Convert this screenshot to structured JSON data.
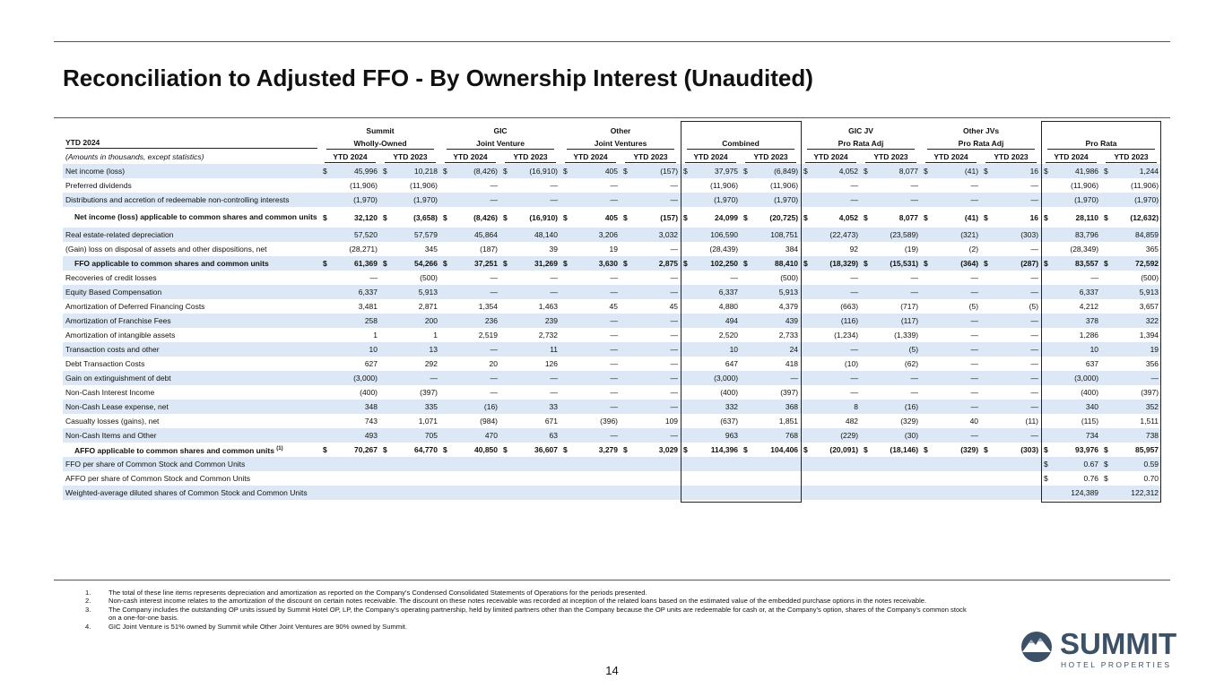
{
  "header": {
    "title": "Reconciliation to Adjusted FFO - By Ownership Interest (Unaudited)"
  },
  "table": {
    "row_header_label": "YTD 2024",
    "units_note": "(Amounts in thousands, except statistics)",
    "groups": [
      {
        "top": "Summit",
        "sub": "Wholly-Owned"
      },
      {
        "top": "GIC",
        "sub": "Joint Venture"
      },
      {
        "top": "Other",
        "sub": "Joint Ventures"
      },
      {
        "sub": "Combined"
      },
      {
        "top": "GIC JV",
        "sub": "Pro Rata Adj"
      },
      {
        "top": "Other JVs",
        "sub": "Pro Rata Adj"
      },
      {
        "sub": "Pro Rata"
      }
    ],
    "column_labels": [
      "YTD 2024",
      "YTD 2023"
    ],
    "currency_symbol": "$",
    "rows": [
      {
        "label": "Net income (loss)",
        "dollar": true,
        "cells": [
          "45,996",
          "10,218",
          "(8,426)",
          "(16,910)",
          "405",
          "(157)",
          "37,975",
          "(6,849)",
          "4,052",
          "8,077",
          "(41)",
          "16",
          "41,986",
          "1,244"
        ]
      },
      {
        "label": "Preferred dividends",
        "cells": [
          "(11,906)",
          "(11,906)",
          "—",
          "—",
          "—",
          "—",
          "(11,906)",
          "(11,906)",
          "—",
          "—",
          "—",
          "—",
          "(11,906)",
          "(11,906)"
        ]
      },
      {
        "label": "Distributions and accretion of redeemable non-controlling interests",
        "cells": [
          "(1,970)",
          "(1,970)",
          "—",
          "—",
          "—",
          "—",
          "(1,970)",
          "(1,970)",
          "—",
          "—",
          "—",
          "—",
          "(1,970)",
          "(1,970)"
        ]
      },
      {
        "label": "Net income (loss) applicable to common shares and common units",
        "bold": true,
        "dollar": true,
        "cells": [
          "32,120",
          "(3,658)",
          "(8,426)",
          "(16,910)",
          "405",
          "(157)",
          "24,099",
          "(20,725)",
          "4,052",
          "8,077",
          "(41)",
          "16",
          "28,110",
          "(12,632)"
        ]
      },
      {
        "label": "Real estate-related depreciation",
        "cells": [
          "57,520",
          "57,579",
          "45,864",
          "48,140",
          "3,206",
          "3,032",
          "106,590",
          "108,751",
          "(22,473)",
          "(23,589)",
          "(321)",
          "(303)",
          "83,796",
          "84,859"
        ]
      },
      {
        "label": "(Gain) loss on disposal of assets and other dispositions, net",
        "cells": [
          "(28,271)",
          "345",
          "(187)",
          "39",
          "19",
          "—",
          "(28,439)",
          "384",
          "92",
          "(19)",
          "(2)",
          "—",
          "(28,349)",
          "365"
        ]
      },
      {
        "label": "FFO applicable to common shares and common units",
        "bold": true,
        "dollar": true,
        "cells": [
          "61,369",
          "54,266",
          "37,251",
          "31,269",
          "3,630",
          "2,875",
          "102,250",
          "88,410",
          "(18,329)",
          "(15,531)",
          "(364)",
          "(287)",
          "83,557",
          "72,592"
        ]
      },
      {
        "label": "Recoveries of credit losses",
        "cells": [
          "—",
          "(500)",
          "—",
          "—",
          "—",
          "—",
          "—",
          "(500)",
          "—",
          "—",
          "—",
          "—",
          "—",
          "(500)"
        ]
      },
      {
        "label": "Equity Based Compensation",
        "cells": [
          "6,337",
          "5,913",
          "—",
          "—",
          "—",
          "—",
          "6,337",
          "5,913",
          "—",
          "—",
          "—",
          "—",
          "6,337",
          "5,913"
        ]
      },
      {
        "label": "Amortization of Deferred Financing Costs",
        "cells": [
          "3,481",
          "2,871",
          "1,354",
          "1,463",
          "45",
          "45",
          "4,880",
          "4,379",
          "(663)",
          "(717)",
          "(5)",
          "(5)",
          "4,212",
          "3,657"
        ]
      },
      {
        "label": "Amortization of Franchise Fees",
        "cells": [
          "258",
          "200",
          "236",
          "239",
          "—",
          "—",
          "494",
          "439",
          "(116)",
          "(117)",
          "—",
          "—",
          "378",
          "322"
        ]
      },
      {
        "label": "Amortization of intangible assets",
        "cells": [
          "1",
          "1",
          "2,519",
          "2,732",
          "—",
          "—",
          "2,520",
          "2,733",
          "(1,234)",
          "(1,339)",
          "—",
          "—",
          "1,286",
          "1,394"
        ]
      },
      {
        "label": "Transaction costs and other",
        "cells": [
          "10",
          "13",
          "—",
          "11",
          "—",
          "—",
          "10",
          "24",
          "—",
          "(5)",
          "—",
          "—",
          "10",
          "19"
        ]
      },
      {
        "label": "Debt Transaction Costs",
        "cells": [
          "627",
          "292",
          "20",
          "126",
          "—",
          "—",
          "647",
          "418",
          "(10)",
          "(62)",
          "—",
          "—",
          "637",
          "356"
        ]
      },
      {
        "label": "Gain on extinguishment of debt",
        "cells": [
          "(3,000)",
          "—",
          "—",
          "—",
          "—",
          "—",
          "(3,000)",
          "—",
          "—",
          "—",
          "—",
          "—",
          "(3,000)",
          "—"
        ]
      },
      {
        "label": "Non-Cash Interest Income",
        "cells": [
          "(400)",
          "(397)",
          "—",
          "—",
          "—",
          "—",
          "(400)",
          "(397)",
          "—",
          "—",
          "—",
          "—",
          "(400)",
          "(397)"
        ]
      },
      {
        "label": "Non-Cash Lease expense, net",
        "cells": [
          "348",
          "335",
          "(16)",
          "33",
          "—",
          "—",
          "332",
          "368",
          "8",
          "(16)",
          "—",
          "—",
          "340",
          "352"
        ]
      },
      {
        "label": "Casualty losses (gains), net",
        "cells": [
          "743",
          "1,071",
          "(984)",
          "671",
          "(396)",
          "109",
          "(637)",
          "1,851",
          "482",
          "(329)",
          "40",
          "(11)",
          "(115)",
          "1,511"
        ]
      },
      {
        "label": "Non-Cash Items and Other",
        "cells": [
          "493",
          "705",
          "470",
          "63",
          "—",
          "—",
          "963",
          "768",
          "(229)",
          "(30)",
          "—",
          "—",
          "734",
          "738"
        ]
      },
      {
        "label": "AFFO applicable to common shares and common units",
        "label_note": "(1)",
        "bold": true,
        "dollar": true,
        "cells": [
          "70,267",
          "64,770",
          "40,850",
          "36,607",
          "3,279",
          "3,029",
          "114,396",
          "104,406",
          "(20,091)",
          "(18,146)",
          "(329)",
          "(303)",
          "93,976",
          "85,957"
        ]
      },
      {
        "label": "FFO per share of Common Stock and Common Units",
        "dollar": true,
        "cells": [
          null,
          null,
          null,
          null,
          null,
          null,
          null,
          null,
          null,
          null,
          null,
          null,
          "0.67",
          "0.59"
        ]
      },
      {
        "label": "AFFO per share of Common Stock and Common Units",
        "dollar": true,
        "cells": [
          null,
          null,
          null,
          null,
          null,
          null,
          null,
          null,
          null,
          null,
          null,
          null,
          "0.76",
          "0.70"
        ]
      },
      {
        "label": "Weighted-average diluted shares of Common Stock and Common Units",
        "cells": [
          null,
          null,
          null,
          null,
          null,
          null,
          null,
          null,
          null,
          null,
          null,
          null,
          "124,389",
          "122,312"
        ]
      }
    ]
  },
  "footnotes": [
    {
      "number": "1.",
      "text": "The total of these line items represents depreciation and amortization as reported on the Company’s Condensed Consolidated Statements of Operations for the periods presented."
    },
    {
      "number": "2.",
      "text": "Non-cash interest income relates to the amortization of the discount on certain notes receivable. The discount on these notes receivable was recorded at inception of the related loans based on the estimated value of the embedded purchase options in the notes receivable."
    },
    {
      "number": "3.",
      "text": "The Company includes the outstanding OP units issued by Summit Hotel OP, LP, the Company’s operating partnership, held by limited partners other than the Company because the OP units are redeemable for cash or, at the Company’s option, shares of the Company’s common stock on a one-for-one basis."
    },
    {
      "number": "4.",
      "text": "GIC Joint Venture is 51% owned by Summit while Other Joint Ventures are 90% owned by Summit."
    }
  ],
  "page_number": "14",
  "logo": {
    "name": "SUMMIT",
    "tagline": "HOTEL PROPERTIES"
  }
}
